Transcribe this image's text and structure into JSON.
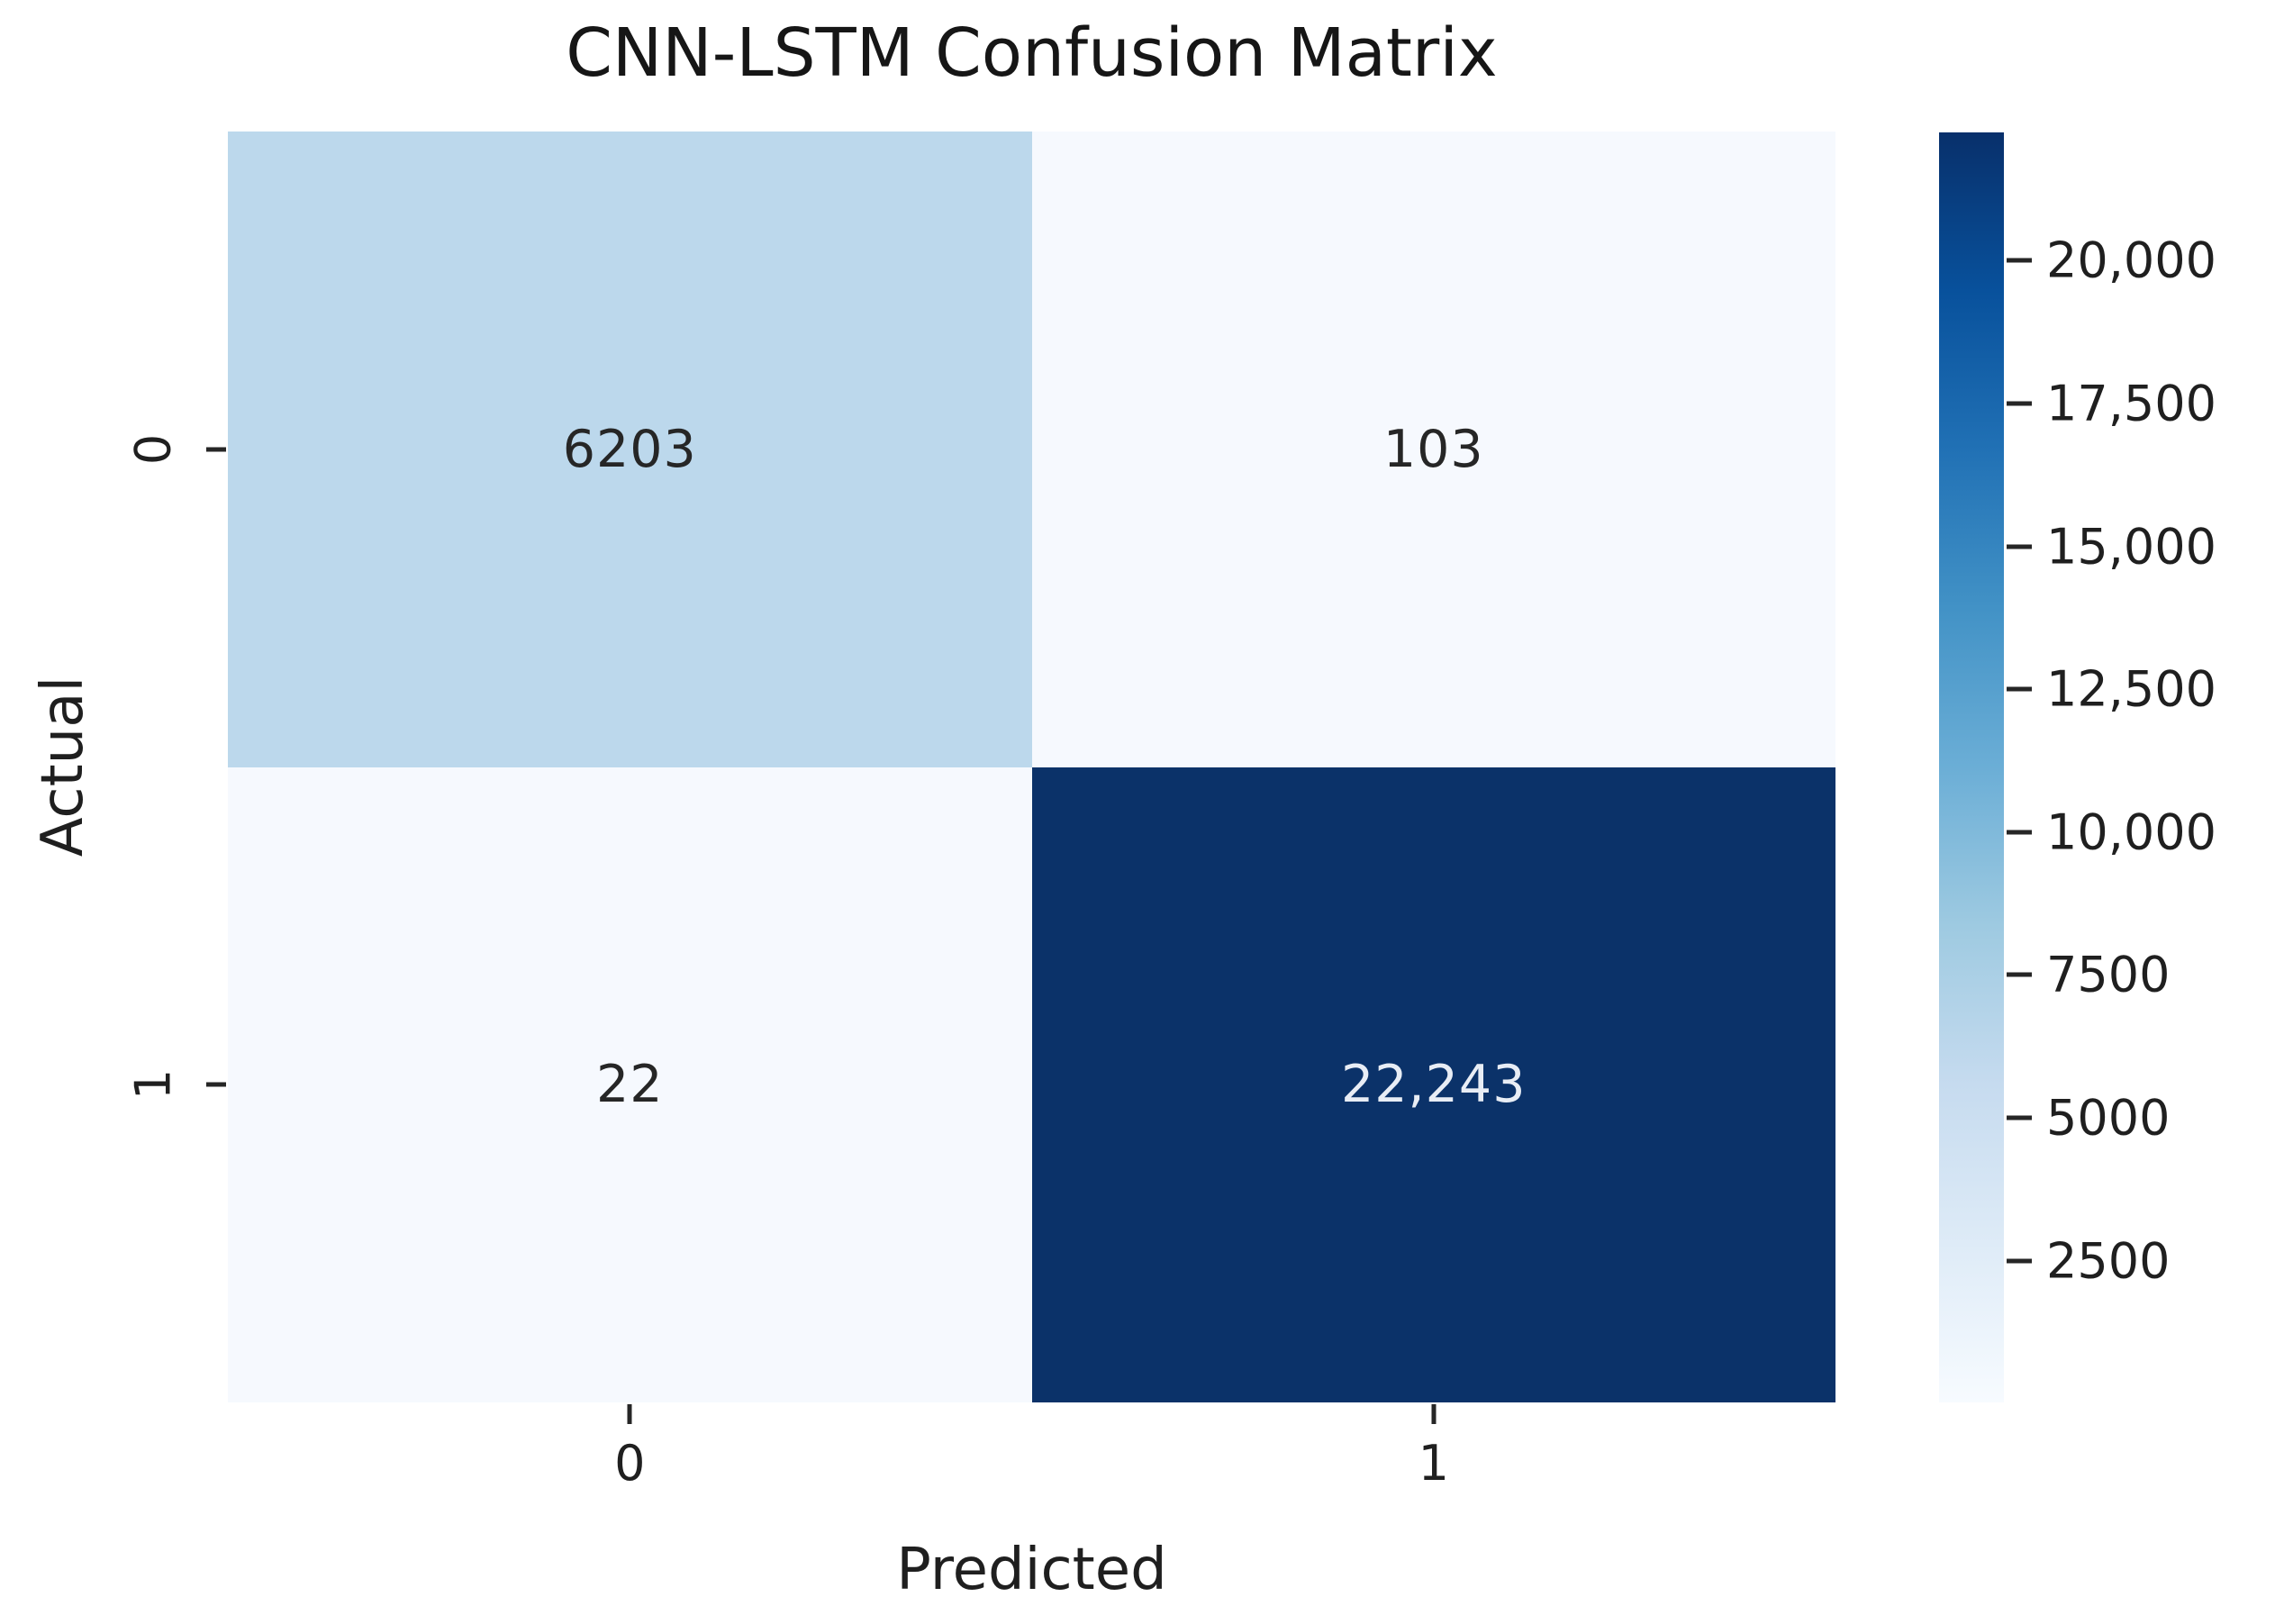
{
  "chart_data": {
    "type": "heatmap",
    "title": "CNN-LSTM Confusion Matrix",
    "xlabel": "Predicted",
    "ylabel": "Actual",
    "x_tick_labels": [
      "0",
      "1"
    ],
    "y_tick_labels": [
      "0",
      "1"
    ],
    "matrix": [
      [
        6203,
        103
      ],
      [
        22,
        22243
      ]
    ],
    "cell_labels": [
      [
        "6203",
        "103"
      ],
      [
        "22",
        "22,243"
      ]
    ],
    "cell_colors": [
      [
        "#bcd8ec",
        "#f6f9fe"
      ],
      [
        "#f6f9fe",
        "#0b3269"
      ]
    ],
    "cell_text_colors": [
      [
        "#262626",
        "#262626"
      ],
      [
        "#262626",
        "#e8edf5"
      ]
    ],
    "colormap": "Blues",
    "vmin": 22,
    "vmax": 22243,
    "grid": false,
    "legend_position": "right-colorbar",
    "colorbar": {
      "ticks": [
        {
          "value": 20000,
          "label": "20,000"
        },
        {
          "value": 17500,
          "label": "17,500"
        },
        {
          "value": 15000,
          "label": "15,000"
        },
        {
          "value": 12500,
          "label": "12,500"
        },
        {
          "value": 10000,
          "label": "10,000"
        },
        {
          "value": 7500,
          "label": "7500"
        },
        {
          "value": 5000,
          "label": "5000"
        },
        {
          "value": 2500,
          "label": "2500"
        }
      ],
      "gradient_stops_bottom_to_top": [
        "#f7fbff",
        "#deebf7",
        "#c6dbef",
        "#9ecae1",
        "#6baed6",
        "#4292c6",
        "#2171b5",
        "#08519c",
        "#08306b"
      ]
    },
    "text_color": "#1f1f1f"
  }
}
